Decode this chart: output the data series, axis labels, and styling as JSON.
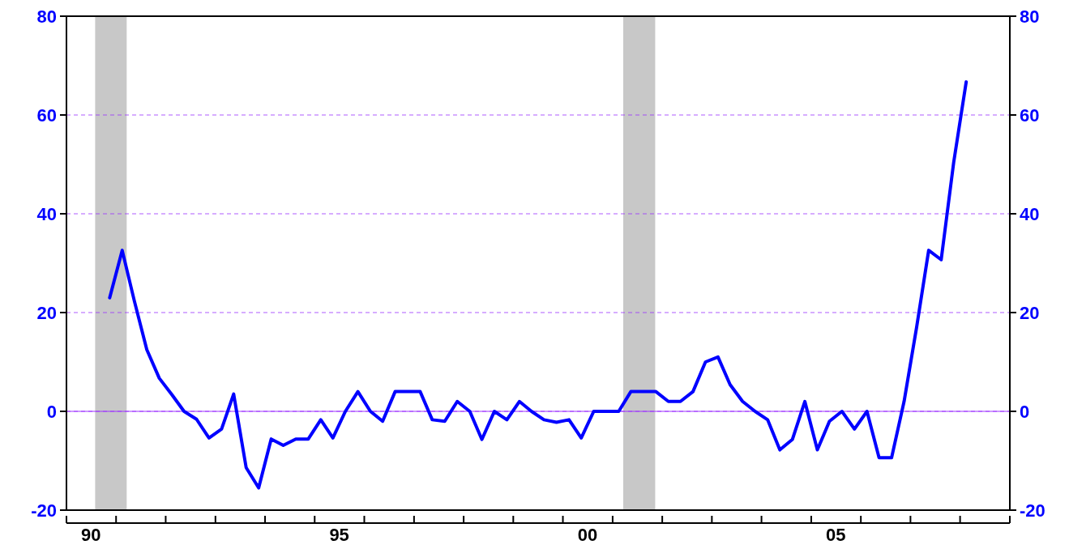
{
  "chart_data": {
    "type": "line",
    "x": [
      "1990-11-15",
      "1991-02-15",
      "1991-05-15",
      "1991-08-15",
      "1991-11-15",
      "1992-02-15",
      "1992-05-15",
      "1992-08-15",
      "1992-11-15",
      "1993-02-15",
      "1993-05-15",
      "1993-08-15",
      "1993-11-15",
      "1994-02-15",
      "1994-05-15",
      "1994-08-15",
      "1994-11-15",
      "1995-02-15",
      "1995-05-15",
      "1995-08-15",
      "1995-11-15",
      "1996-02-15",
      "1996-05-15",
      "1996-08-15",
      "1996-11-15",
      "1997-02-15",
      "1997-05-15",
      "1997-08-15",
      "1997-11-15",
      "1998-02-15",
      "1998-05-15",
      "1998-08-15",
      "1998-11-15",
      "1999-02-15",
      "1999-05-15",
      "1999-08-15",
      "1999-11-15",
      "2000-02-15",
      "2000-05-15",
      "2000-08-15",
      "2000-11-15",
      "2001-02-15",
      "2001-05-15",
      "2001-08-15",
      "2001-11-15",
      "2002-02-15",
      "2002-05-15",
      "2002-08-15",
      "2002-11-15",
      "2003-02-15",
      "2003-05-15",
      "2003-08-15",
      "2003-11-15",
      "2004-02-15",
      "2004-05-15",
      "2004-08-15",
      "2004-11-15",
      "2005-02-15",
      "2005-05-15",
      "2005-08-15",
      "2005-11-15",
      "2006-02-15",
      "2006-05-15",
      "2006-08-15",
      "2006-11-15",
      "2007-02-15",
      "2007-05-15",
      "2007-08-15",
      "2007-11-15",
      "2008-02-15"
    ],
    "series": [
      {
        "color": "#0000ff",
        "values": [
          23,
          32.6,
          22.4,
          12.5,
          6.7,
          3.4,
          0,
          -1.6,
          -5.4,
          -3.6,
          3.5,
          -11.4,
          -15.5,
          -5.6,
          -6.9,
          -5.6,
          -5.6,
          -1.7,
          -5.4,
          0,
          4,
          0,
          -2,
          4,
          4,
          4,
          -1.7,
          -2,
          2,
          0,
          -5.7,
          0,
          -1.7,
          2,
          0,
          -1.7,
          -2.2,
          -1.7,
          -5.4,
          0,
          0,
          0,
          4,
          4,
          4,
          2,
          2,
          4,
          10,
          11,
          5.4,
          2,
          0,
          -1.7,
          -7.8,
          -5.7,
          2,
          -7.8,
          -2,
          0,
          -3.6,
          0,
          -9.4,
          -9.4,
          2,
          17,
          32.6,
          30.7,
          50.4,
          66.7
        ]
      }
    ],
    "xlim": [
      "1990",
      "2009"
    ],
    "xticks": [
      {
        "value": "1990",
        "label": null
      },
      {
        "value": "1991",
        "label": null
      },
      {
        "value": "1992",
        "label": null
      },
      {
        "value": "1993",
        "label": null
      },
      {
        "value": "1994",
        "label": null
      },
      {
        "value": "1995",
        "label": null
      },
      {
        "value": "1996",
        "label": null
      },
      {
        "value": "1997",
        "label": null
      },
      {
        "value": "1998",
        "label": null
      },
      {
        "value": "1999",
        "label": null
      },
      {
        "value": "2000",
        "label": null
      },
      {
        "value": "2001",
        "label": null
      },
      {
        "value": "2002",
        "label": null
      },
      {
        "value": "2003",
        "label": null
      },
      {
        "value": "2004",
        "label": null
      },
      {
        "value": "2005",
        "label": null
      },
      {
        "value": "2006",
        "label": null
      },
      {
        "value": "2007",
        "label": null
      },
      {
        "value": "2008",
        "label": null
      },
      {
        "value": "2009",
        "label": null
      },
      {
        "value": "1990-07",
        "label": "90"
      },
      {
        "value": "1995-07",
        "label": "95"
      },
      {
        "value": "2000-07",
        "label": "00"
      },
      {
        "value": "2005-07",
        "label": "05"
      }
    ],
    "ylim": [
      -20,
      80
    ],
    "yticks": [
      -20,
      0,
      20,
      40,
      60,
      80
    ],
    "y2lim": [
      -20,
      80
    ],
    "y2ticks": [
      -20,
      0,
      20,
      40,
      60,
      80
    ],
    "grid": "y",
    "line_style": "solid",
    "marker": "none",
    "ref_lines": [
      {
        "axis": "y",
        "value": 0,
        "color": "#9b30ff",
        "line_style": "solid"
      }
    ],
    "bands": [
      {
        "axis": "x",
        "from": "1990-07-31",
        "to": "1991-03-20",
        "color": "#c8c8c8"
      },
      {
        "axis": "x",
        "from": "2001-03-20",
        "to": "2001-11-10",
        "color": "#c8c8c8"
      }
    ]
  }
}
